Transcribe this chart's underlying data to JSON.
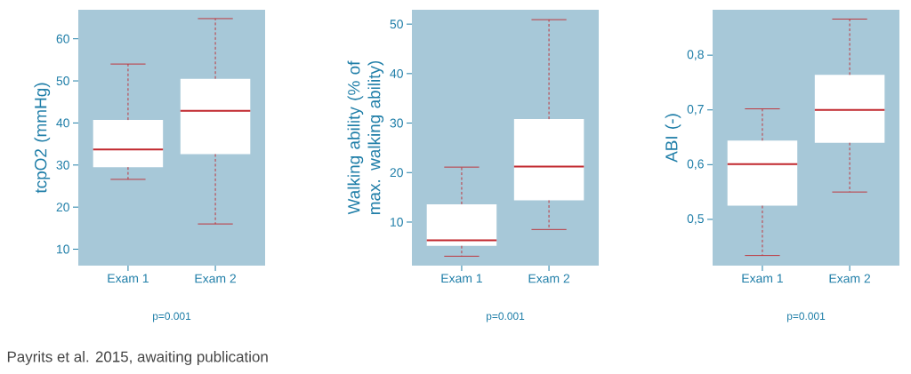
{
  "chart_data": [
    {
      "type": "box",
      "ylabel": "tcpO2 (mmHg)",
      "categories": [
        "Exam 1",
        "Exam 2"
      ],
      "boxes": [
        {
          "low": 26.6,
          "q1": 29.5,
          "median": 33.7,
          "q3": 40.7,
          "high": 54
        },
        {
          "low": 16,
          "q1": 32.6,
          "median": 42.9,
          "q3": 50.5,
          "high": 64.8
        }
      ],
      "ylim": [
        6.1,
        66.9
      ],
      "yticks": [
        10,
        20,
        30,
        40,
        50,
        60
      ],
      "annotations": [
        "p=0.001",
        "Payrits et al. 2015, awaiting publication"
      ]
    },
    {
      "type": "box",
      "ylabel": "Walking ability (% of max. walking ability)",
      "categories": [
        "Exam 1",
        "Exam 2"
      ],
      "boxes": [
        {
          "low": 3.1,
          "q1": 5.2,
          "median": 6.3,
          "q3": 13.6,
          "high": 21.1
        },
        {
          "low": 8.5,
          "q1": 14.4,
          "median": 21.2,
          "q3": 30.8,
          "high": 50.9
        }
      ],
      "ylim": [
        1.2,
        52.9
      ],
      "yticks": [
        10,
        20,
        30,
        40,
        50
      ],
      "annotations": [
        "p=0.001"
      ]
    },
    {
      "type": "box",
      "ylabel": "ABI (-)",
      "categories": [
        "Exam 1",
        "Exam 2"
      ],
      "boxes": [
        {
          "low": 0.434,
          "q1": 0.525,
          "median": 0.601,
          "q3": 0.644,
          "high": 0.702
        },
        {
          "low": 0.55,
          "q1": 0.64,
          "median": 0.7,
          "q3": 0.764,
          "high": 0.866
        }
      ],
      "ylim": [
        0.4155,
        0.883
      ],
      "yticks": [
        {
          "value": 0.5,
          "label": "0,5"
        },
        {
          "value": 0.6,
          "label": "0,6"
        },
        {
          "value": 0.7,
          "label": "0,7"
        },
        {
          "value": 0.8,
          "label": "0,8"
        }
      ],
      "annotations": [
        "p=0.001"
      ]
    }
  ]
}
